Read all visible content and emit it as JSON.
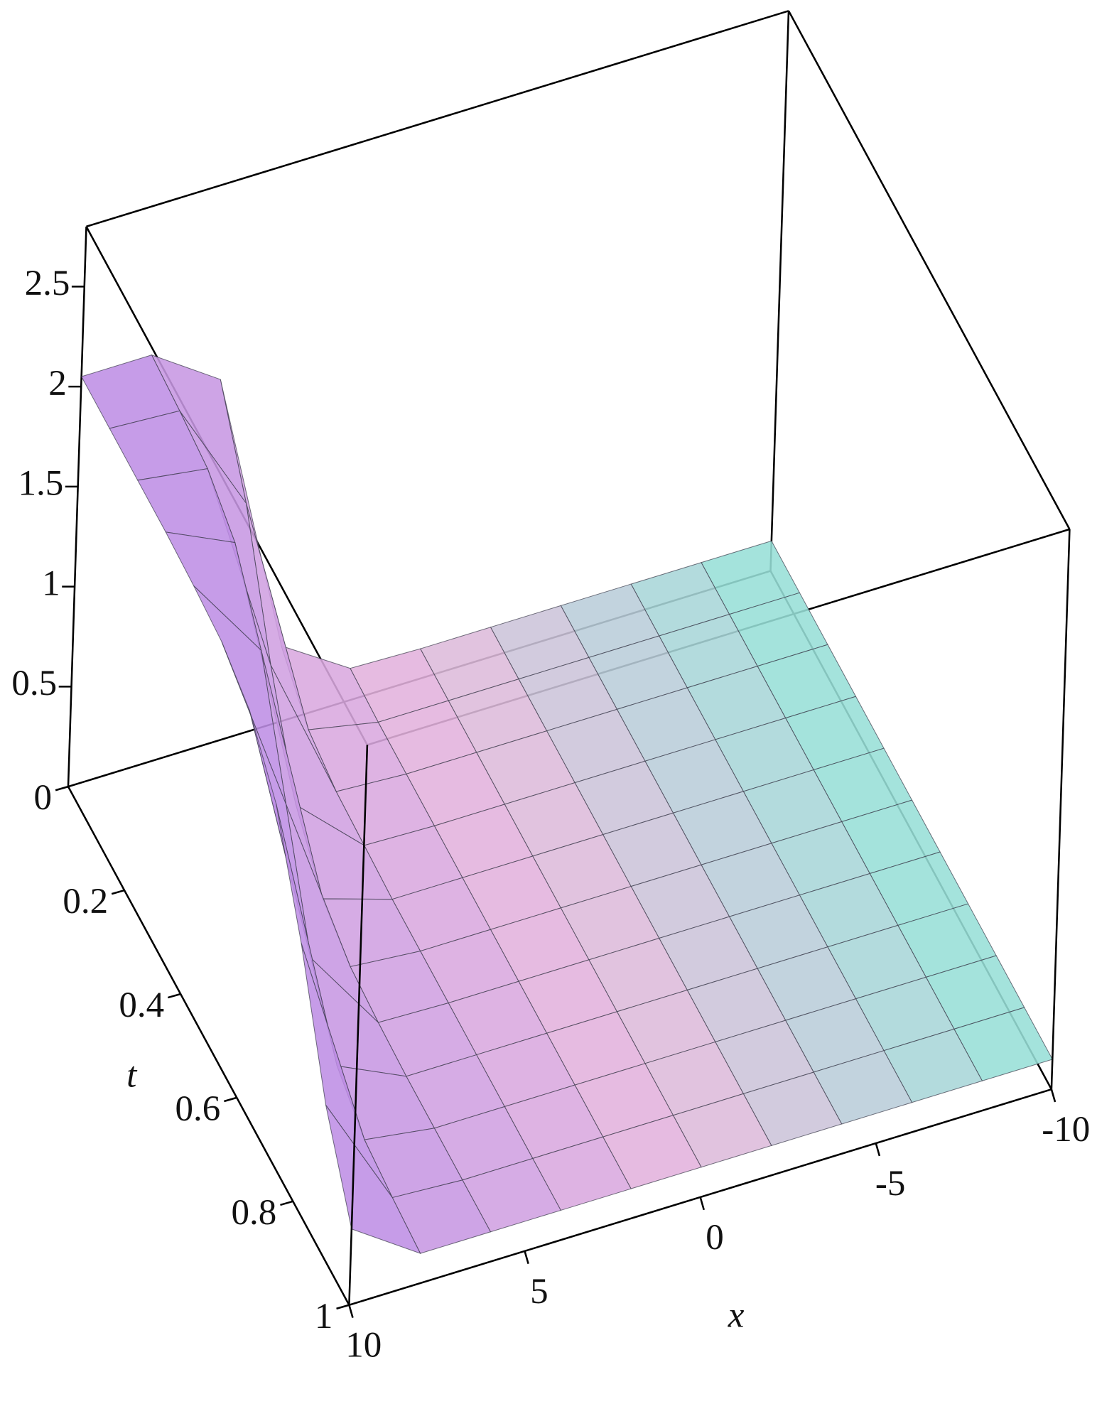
{
  "chart_data": {
    "type": "surface",
    "xlabel": "x",
    "ylabel": "t",
    "x": [
      -10,
      -8,
      -6,
      -4,
      -2,
      0,
      2,
      4,
      6,
      8,
      10
    ],
    "y": [
      0,
      0.1,
      0.2,
      0.3,
      0.4,
      0.5,
      0.6,
      0.7,
      0.8,
      0.9,
      1
    ],
    "z": [
      [
        0.15,
        0.15,
        0.15,
        0.15,
        0.15,
        0.15,
        0.16,
        0.38,
        1.82,
        2.05,
        2.05
      ],
      [
        0.15,
        0.15,
        0.15,
        0.15,
        0.15,
        0.15,
        0.15,
        0.22,
        1.46,
        2.03,
        2.05
      ],
      [
        0.15,
        0.15,
        0.15,
        0.15,
        0.15,
        0.15,
        0.15,
        0.17,
        0.91,
        2.0,
        2.05
      ],
      [
        0.15,
        0.15,
        0.15,
        0.15,
        0.15,
        0.15,
        0.15,
        0.16,
        0.47,
        1.89,
        2.05
      ],
      [
        0.15,
        0.15,
        0.15,
        0.15,
        0.15,
        0.15,
        0.15,
        0.15,
        0.26,
        1.61,
        2.04
      ],
      [
        0.15,
        0.15,
        0.15,
        0.15,
        0.15,
        0.15,
        0.15,
        0.15,
        0.18,
        1.1,
        2.02
      ],
      [
        0.15,
        0.15,
        0.15,
        0.15,
        0.15,
        0.15,
        0.15,
        0.15,
        0.16,
        0.59,
        1.94
      ],
      [
        0.15,
        0.15,
        0.15,
        0.15,
        0.15,
        0.15,
        0.15,
        0.15,
        0.15,
        0.31,
        1.73
      ],
      [
        0.15,
        0.15,
        0.15,
        0.15,
        0.15,
        0.15,
        0.15,
        0.15,
        0.15,
        0.2,
        1.29
      ],
      [
        0.15,
        0.15,
        0.15,
        0.15,
        0.15,
        0.15,
        0.15,
        0.15,
        0.15,
        0.17,
        0.74
      ],
      [
        0.15,
        0.15,
        0.15,
        0.15,
        0.15,
        0.15,
        0.15,
        0.15,
        0.15,
        0.15,
        0.38
      ]
    ],
    "xlim": [
      -10,
      10
    ],
    "xticks": [
      -10,
      -5,
      0,
      5,
      10
    ],
    "ylim": [
      0,
      1
    ],
    "yticks": [
      0,
      0.2,
      0.4,
      0.6,
      0.8,
      1
    ],
    "zlim": [
      0,
      2.8
    ],
    "zticks": [
      0.5,
      1,
      1.5,
      2,
      2.5
    ],
    "colors": [
      "#8ee3d6",
      "#e6b6dc",
      "#b98ae6"
    ]
  }
}
